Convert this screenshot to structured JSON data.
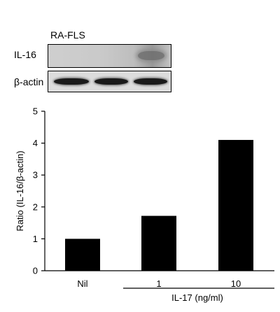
{
  "blot": {
    "cell_label": "RA-FLS",
    "rows": [
      {
        "label": "IL-16"
      },
      {
        "label": "β-actin"
      }
    ]
  },
  "chart_data": {
    "type": "bar",
    "categories": [
      "Nil",
      "1",
      "10"
    ],
    "values": [
      1.0,
      1.72,
      4.1
    ],
    "ylabel": "Ratio (IL-16/β-actin)",
    "ylim": [
      0,
      5
    ],
    "yticks": [
      "0",
      "1",
      "2",
      "3",
      "4",
      "5"
    ],
    "group_label": "IL-17 (ng/ml)",
    "bar_color": "#000000",
    "grid": false
  }
}
